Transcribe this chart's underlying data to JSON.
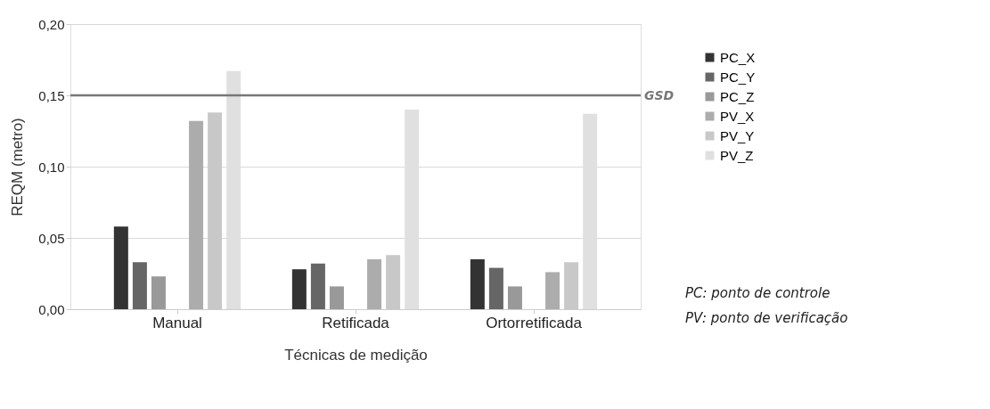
{
  "chart_data": {
    "type": "bar",
    "xlabel": "Técnicas de medição",
    "ylabel": "REQM (metro)",
    "categories": [
      "Manual",
      "Retificada",
      "Ortorretificada"
    ],
    "series": [
      {
        "name": "PC_X",
        "color": "#333333",
        "values": [
          0.058,
          0.028,
          0.035
        ]
      },
      {
        "name": "PC_Y",
        "color": "#666666",
        "values": [
          0.033,
          0.032,
          0.029
        ]
      },
      {
        "name": "PC_Z",
        "color": "#999999",
        "values": [
          0.023,
          0.016,
          0.016
        ]
      },
      {
        "name": "PV_X",
        "color": "#acacac",
        "values": [
          0.132,
          0.035,
          0.026
        ]
      },
      {
        "name": "PV_Y",
        "color": "#c8c8c8",
        "values": [
          0.138,
          0.038,
          0.033
        ]
      },
      {
        "name": "PV_Z",
        "color": "#e0e0e0",
        "values": [
          0.167,
          0.14,
          0.137
        ]
      }
    ],
    "ylim": [
      0,
      0.2
    ],
    "yticks": [
      {
        "value": 0,
        "label": "0,00"
      },
      {
        "value": 0.05,
        "label": "0,05"
      },
      {
        "value": 0.1,
        "label": "0,10"
      },
      {
        "value": 0.15,
        "label": "0,15"
      },
      {
        "value": 0.2,
        "label": "0,20"
      }
    ],
    "ref_lines": [
      {
        "axis": "y",
        "value": 0.15,
        "label": "GSD",
        "color": "#777777"
      }
    ],
    "grid": "y",
    "legend": "right",
    "annotations": [
      "PC: ponto de controle",
      "PV: ponto de verificação"
    ]
  }
}
